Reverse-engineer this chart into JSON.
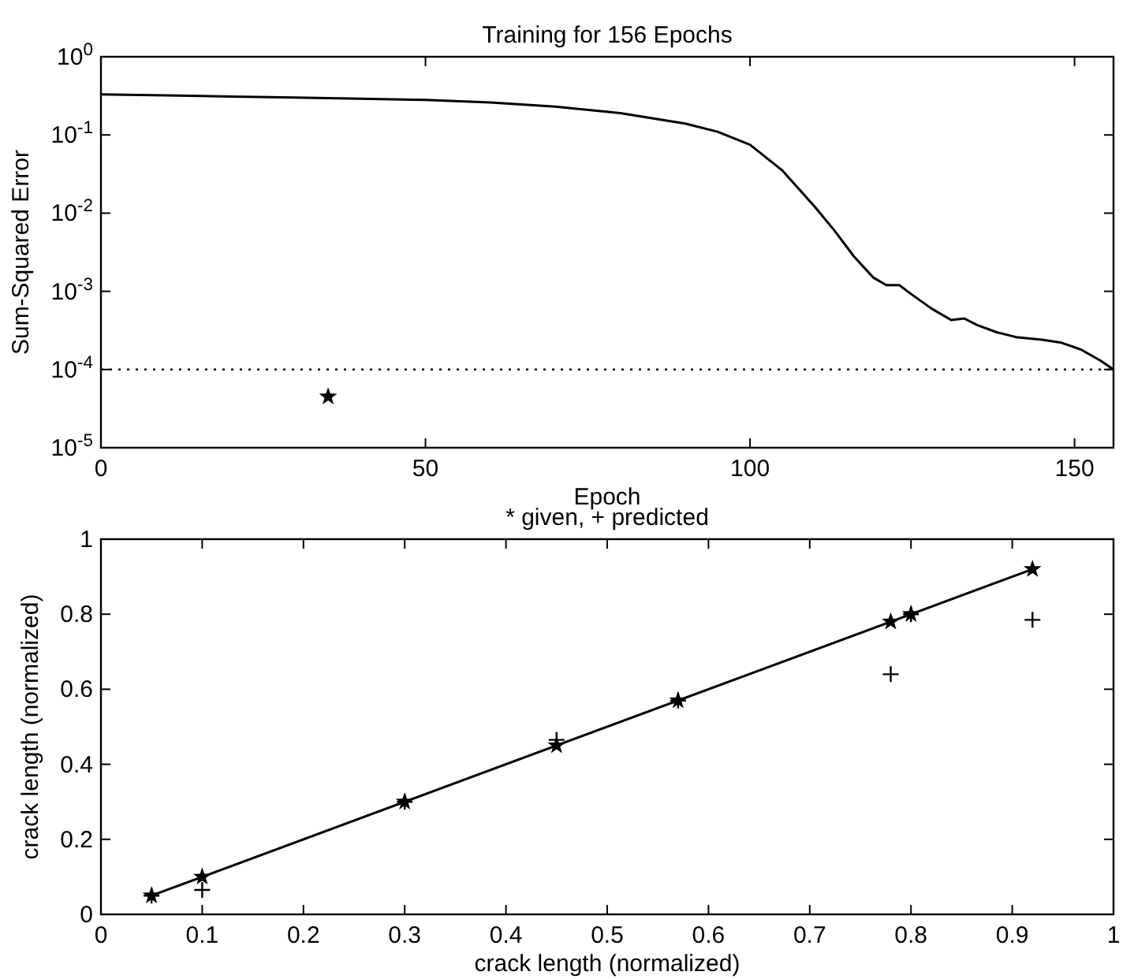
{
  "chart_data": [
    {
      "type": "line",
      "title": "Training for 156 Epochs",
      "xlabel": "Epoch",
      "ylabel": "Sum-Squared Error",
      "log": "y",
      "xlim": [
        0,
        156
      ],
      "xticks": [
        0,
        50,
        100,
        150
      ],
      "ylim": [
        1e-05,
        1
      ],
      "yticks": [
        {
          "value": 1e-05,
          "label": "10$^{-5}$"
        },
        {
          "value": 0.0001,
          "label": "10$^{-4}$"
        },
        {
          "value": 0.001,
          "label": "10$^{-3}$"
        },
        {
          "value": 0.01,
          "label": "10$^{-2}$"
        },
        {
          "value": 0.1,
          "label": "10$^{-1}$"
        },
        {
          "value": 1,
          "label": "10$^{0}$"
        }
      ],
      "grid": false,
      "series": [
        {
          "color": "#000000",
          "line_style": "solid",
          "marker": "none",
          "x": [
            0,
            10,
            20,
            30,
            40,
            50,
            60,
            70,
            80,
            90,
            95,
            100,
            105,
            110,
            113,
            116,
            119,
            121,
            123,
            125,
            128,
            131,
            133,
            135,
            138,
            141,
            145,
            148,
            151,
            154,
            156
          ],
          "values": [
            0.33,
            0.32,
            0.31,
            0.3,
            0.29,
            0.28,
            0.26,
            0.23,
            0.19,
            0.14,
            0.11,
            0.075,
            0.035,
            0.012,
            0.006,
            0.0028,
            0.0015,
            0.0012,
            0.0012,
            0.0009,
            0.0006,
            0.00043,
            0.00045,
            0.00037,
            0.0003,
            0.00026,
            0.00024,
            0.00022,
            0.00018,
            0.00013,
            0.0001
          ]
        },
        {
          "type": "scatter",
          "color": "#000000",
          "marker": "star",
          "x": [
            35
          ],
          "values": [
            4.5e-05
          ]
        }
      ],
      "ref_lines": [
        {
          "axis": "y",
          "value": 0.0001,
          "line_style": "dotted",
          "color": "#000000"
        }
      ]
    },
    {
      "type": "scatter",
      "title": "* given, + predicted",
      "xlabel": "crack length (normalized)",
      "ylabel": "crack length (normalized)",
      "xlim": [
        0,
        1
      ],
      "xticks": [
        0,
        0.1,
        0.2,
        0.3,
        0.4,
        0.5,
        0.6,
        0.7,
        0.8,
        0.9,
        1
      ],
      "ylim": [
        0,
        1
      ],
      "yticks": [
        0,
        0.2,
        0.4,
        0.6,
        0.8,
        1
      ],
      "grid": false,
      "series": [
        {
          "type": "line",
          "color": "#000000",
          "line_style": "solid",
          "marker": "none",
          "x": [
            0.05,
            0.92
          ],
          "values": [
            0.05,
            0.92
          ]
        },
        {
          "color": "#000000",
          "marker": "cross",
          "x": [
            0.05,
            0.1,
            0.3,
            0.45,
            0.57,
            0.78,
            0.8,
            0.92
          ],
          "values": [
            0.05,
            0.065,
            0.3,
            0.465,
            0.57,
            0.64,
            0.8,
            0.785
          ]
        },
        {
          "color": "#000000",
          "marker": "star",
          "x": [
            0.05,
            0.1,
            0.3,
            0.45,
            0.57,
            0.78,
            0.8,
            0.92
          ],
          "values": [
            0.05,
            0.1,
            0.3,
            0.45,
            0.57,
            0.78,
            0.8,
            0.92
          ]
        }
      ]
    }
  ]
}
